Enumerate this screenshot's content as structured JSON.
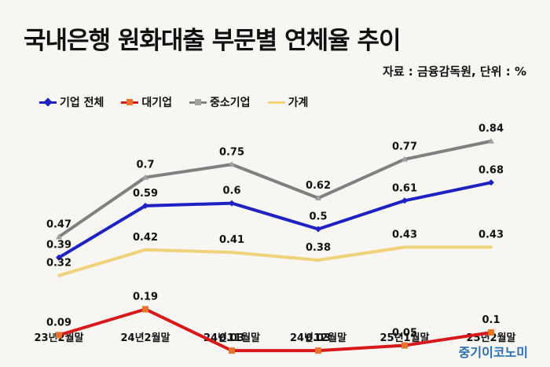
{
  "title": "국내은행 원화대출 부문별 연체율 추이",
  "source": "자료 : 금융감독원, 단위 : %",
  "watermark": "중기이코노미",
  "chart_data": {
    "type": "line",
    "title": "국내은행 원화대출 부문별 연체율 추이",
    "unit": "%",
    "categories": [
      "23년2월말",
      "24년2월말",
      "24년11월말",
      "24년12월말",
      "25년1월말",
      "25년2월말"
    ],
    "series": [
      {
        "name": "기업 전체",
        "color": "#1e22c2",
        "marker": "diamond",
        "values": [
          0.39,
          0.59,
          0.6,
          0.5,
          0.61,
          0.68
        ],
        "labels": [
          "0.39",
          "0.59",
          "0.6",
          "0.5",
          "0.61",
          "0.68"
        ]
      },
      {
        "name": "대기업",
        "color": "#d7191c",
        "marker": "square",
        "values": [
          0.09,
          0.19,
          0.03,
          0.03,
          0.05,
          0.1
        ],
        "labels": [
          "0.09",
          "0.19",
          "0.03",
          "0.03",
          "0.05",
          "0.1"
        ]
      },
      {
        "name": "중소기업",
        "color": "#808080",
        "marker": "triangle",
        "values": [
          0.47,
          0.7,
          0.75,
          0.62,
          0.77,
          0.84
        ],
        "labels": [
          "0.47",
          "0.7",
          "0.75",
          "0.62",
          "0.77",
          "0.84"
        ]
      },
      {
        "name": "가계",
        "color": "#f0d27a",
        "marker": "x",
        "values": [
          0.32,
          0.42,
          0.41,
          0.38,
          0.43,
          0.43
        ],
        "labels": [
          "0.32",
          "0.42",
          "0.41",
          "0.38",
          "0.43",
          "0.43"
        ]
      }
    ],
    "ylim": [
      0,
      0.9
    ],
    "grid": false,
    "legend_position": "top-left"
  }
}
